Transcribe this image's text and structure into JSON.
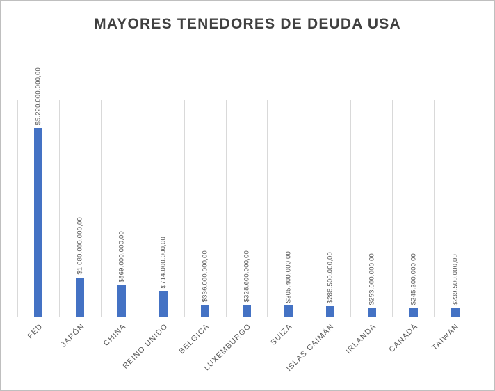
{
  "chart_data": {
    "type": "bar",
    "title": "MAYORES TENEDORES DE DEUDA USA",
    "categories": [
      "FED",
      "JAPÓN",
      "CHINA",
      "REINO UNIDO",
      "BÉLGICA",
      "LUXEMBURGO",
      "SUIZA",
      "ISLAS CAIMÁN",
      "IRLANDA",
      "CANADÁ",
      "TAIWÁN"
    ],
    "values": [
      5220000000,
      1080000000,
      869000000,
      714000000,
      336000000,
      328600000,
      305400000,
      288500000,
      253000000,
      245300000,
      239500000
    ],
    "data_labels": [
      "$5.220.000.000,00",
      "$1.080.000.000,00",
      "$869.000.000,00",
      "$714.000.000,00",
      "$336.000.000,00",
      "$328.600.000,00",
      "$305.400.000,00",
      "$288.500.000,00",
      "$253.000.000,00",
      "$245.300.000,00",
      "$239.500.000,00"
    ],
    "xlabel": "",
    "ylabel": "",
    "ylim": [
      0,
      6000000000
    ],
    "grid": "vertical-gridlines",
    "legend": "none",
    "bar_color": "#4472C4",
    "gridline_color": "#D9D9D9",
    "label_color": "#595959",
    "title_color": "#404040",
    "border_color": "#BFBFBF",
    "background_color": "#FFFFFF"
  }
}
